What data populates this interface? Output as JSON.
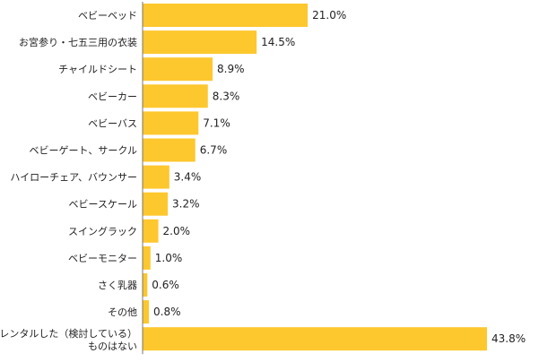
{
  "chart_data": {
    "type": "bar",
    "orientation": "horizontal",
    "title": "",
    "xlabel": "",
    "ylabel": "",
    "value_suffix": "%",
    "xlim": [
      0,
      43.8
    ],
    "grid": false,
    "legend": "none",
    "bar_color": "#fdc72e",
    "axis_color": "#777777",
    "categories": [
      "ベビーベッド",
      "お宮参り・七五三用の衣装",
      "チャイルドシート",
      "ベビーカー",
      "ベビーバス",
      "ベビーゲート、サークル",
      "ハイローチェア、バウンサー",
      "ベビースケール",
      "スイングラック",
      "ベビーモニター",
      "さく乳器",
      "その他",
      [
        "レンタルした（検討している）",
        "ものはない"
      ]
    ],
    "values": [
      21.0,
      14.5,
      8.9,
      8.3,
      7.1,
      6.7,
      3.4,
      3.2,
      2.0,
      1.0,
      0.6,
      0.8,
      43.8
    ],
    "value_labels": [
      "21.0%",
      "14.5%",
      "8.9%",
      "8.3%",
      "7.1%",
      "6.7%",
      "3.4%",
      "3.2%",
      "2.0%",
      "1.0%",
      "0.6%",
      "0.8%",
      "43.8%"
    ]
  }
}
